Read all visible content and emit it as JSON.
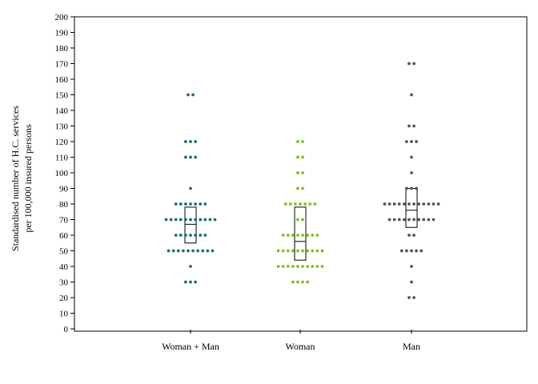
{
  "chart_data": {
    "type": "dotplot",
    "title": "",
    "xlabel": "",
    "ylabel_lines": [
      "Standardised number of H.C. services",
      "per 100,000 insured persons"
    ],
    "ylim": [
      0,
      200
    ],
    "yticks": [
      0,
      10,
      20,
      30,
      40,
      50,
      60,
      70,
      80,
      90,
      100,
      110,
      120,
      130,
      140,
      150,
      160,
      170,
      180,
      190,
      200
    ],
    "grid": false,
    "series": [
      {
        "name": "Woman + Man",
        "color": "#1f6b73",
        "points": [
          {
            "y": 150,
            "n": 2
          },
          {
            "y": 120,
            "n": 3
          },
          {
            "y": 110,
            "n": 3
          },
          {
            "y": 90,
            "n": 1
          },
          {
            "y": 80,
            "n": 7
          },
          {
            "y": 70,
            "n": 11
          },
          {
            "y": 60,
            "n": 7
          },
          {
            "y": 50,
            "n": 10
          },
          {
            "y": 40,
            "n": 1
          },
          {
            "y": 30,
            "n": 3
          }
        ],
        "box": {
          "q1": 55,
          "median": 67,
          "q3": 78
        }
      },
      {
        "name": "Woman",
        "color": "#7dc21e",
        "points": [
          {
            "y": 120,
            "n": 2
          },
          {
            "y": 110,
            "n": 2
          },
          {
            "y": 100,
            "n": 2
          },
          {
            "y": 90,
            "n": 2
          },
          {
            "y": 80,
            "n": 7
          },
          {
            "y": 70,
            "n": 2
          },
          {
            "y": 60,
            "n": 8
          },
          {
            "y": 50,
            "n": 10
          },
          {
            "y": 40,
            "n": 10
          },
          {
            "y": 30,
            "n": 4
          }
        ],
        "box": {
          "q1": 44,
          "median": 56,
          "q3": 78
        }
      },
      {
        "name": "Man",
        "color": "#555555",
        "points": [
          {
            "y": 170,
            "n": 2
          },
          {
            "y": 150,
            "n": 1
          },
          {
            "y": 130,
            "n": 2
          },
          {
            "y": 120,
            "n": 3
          },
          {
            "y": 110,
            "n": 1
          },
          {
            "y": 100,
            "n": 1
          },
          {
            "y": 90,
            "n": 3
          },
          {
            "y": 80,
            "n": 12
          },
          {
            "y": 70,
            "n": 10
          },
          {
            "y": 60,
            "n": 2
          },
          {
            "y": 50,
            "n": 5
          },
          {
            "y": 40,
            "n": 1
          },
          {
            "y": 30,
            "n": 1
          },
          {
            "y": 20,
            "n": 2
          }
        ],
        "box": {
          "q1": 65,
          "median": 76,
          "q3": 90
        }
      }
    ]
  }
}
